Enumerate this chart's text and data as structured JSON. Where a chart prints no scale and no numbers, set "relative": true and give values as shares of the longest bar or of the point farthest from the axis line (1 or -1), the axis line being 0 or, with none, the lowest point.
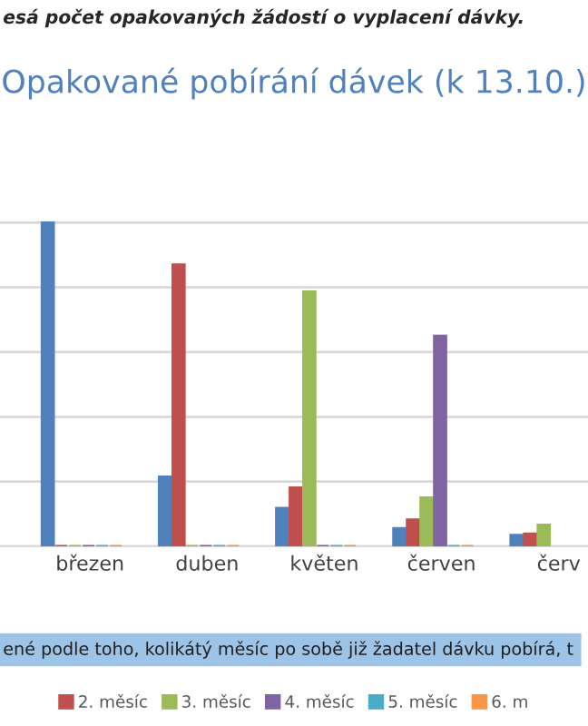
{
  "chart_data": {
    "type": "bar",
    "title": "Opakované pobírání dávek (k 13.10.)",
    "annotations": [
      "esá počet opakovaných žádostí o vyplacení dávky.",
      "ené podle toho, kolikátý měsíc po sobě již žadatel dávku pobírá, t"
    ],
    "categories": [
      "březen",
      "duben",
      "květen",
      "červen",
      "červ"
    ],
    "relative": true,
    "grid": "y",
    "legend": "bottom",
    "series": [
      {
        "color": "#4f81bd",
        "values": [
          1,
          0.215,
          0.118,
          0.056,
          0.035
        ]
      },
      {
        "name": "2. měsíc",
        "color": "#c0504d",
        "values": [
          0,
          0.87,
          0.181,
          0.082,
          0.039
        ]
      },
      {
        "name": "3. měsíc",
        "color": "#9bbb59",
        "values": [
          0,
          0,
          0.787,
          0.15,
          0.066
        ]
      },
      {
        "name": "4. měsíc",
        "color": "#8064a2",
        "values": [
          0,
          0,
          0,
          0.65,
          null
        ]
      },
      {
        "name": "5. měsíc",
        "color": "#4bacc6",
        "values": [
          0,
          0,
          0,
          0,
          null
        ]
      },
      {
        "name": "6. m",
        "color": "#f79646",
        "values": [
          0,
          0,
          0,
          0,
          null
        ]
      }
    ]
  }
}
